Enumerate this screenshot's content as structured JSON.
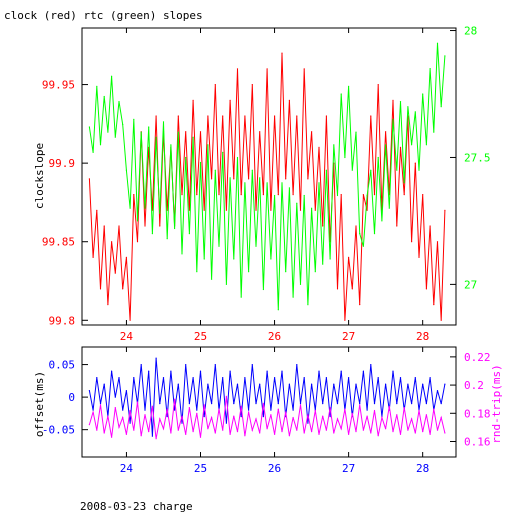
{
  "page_title": "clock (red) rtc (green) slopes",
  "footer_text": "2008-03-23 charge",
  "colors": {
    "red": "#ff0000",
    "green": "#00ff00",
    "blue": "#0000ff",
    "magenta": "#ff00ff",
    "axis": "#000000",
    "left_axis_text_top": "#ff0000",
    "right_axis_text_top": "#00ff00",
    "left_axis_text_bottom": "#0000ff",
    "right_axis_text_bottom": "#ff00ff"
  },
  "chart_data": [
    {
      "type": "line",
      "title": "clock (red) rtc (green) slopes",
      "xlabel": "",
      "ylabel": "clockslope",
      "y2label": "",
      "xlim": [
        23.4,
        28.45
      ],
      "x_ticks": [
        24,
        25,
        26,
        27,
        28
      ],
      "x_tick_labels": [
        "24",
        "25",
        "26",
        "27",
        "28"
      ],
      "ylim": [
        99.797,
        99.986
      ],
      "y_ticks": [
        99.8,
        99.85,
        99.9,
        99.95
      ],
      "y_tick_labels": [
        "99.8",
        "99.85",
        "99.9",
        "99.95"
      ],
      "y2lim": [
        26.84,
        28.01
      ],
      "y2_ticks": [
        27,
        27.5,
        28
      ],
      "y2_tick_labels": [
        "27",
        "27.5",
        "28"
      ],
      "series": [
        {
          "color": "#ff0000",
          "axis": "left",
          "x": [
            23.5,
            23.55,
            23.6,
            23.65,
            23.7,
            23.75,
            23.8,
            23.85,
            23.9,
            23.95,
            24.0,
            24.05,
            24.1,
            24.15,
            24.2,
            24.25,
            24.3,
            24.35,
            24.4,
            24.45,
            24.5,
            24.55,
            24.6,
            24.65,
            24.7,
            24.75,
            24.8,
            24.85,
            24.9,
            24.95,
            25.0,
            25.05,
            25.1,
            25.15,
            25.2,
            25.25,
            25.3,
            25.35,
            25.4,
            25.45,
            25.5,
            25.55,
            25.6,
            25.65,
            25.7,
            25.75,
            25.8,
            25.85,
            25.9,
            25.95,
            26.0,
            26.05,
            26.1,
            26.15,
            26.2,
            26.25,
            26.3,
            26.35,
            26.4,
            26.45,
            26.5,
            26.55,
            26.6,
            26.65,
            26.7,
            26.75,
            26.8,
            26.85,
            26.9,
            26.95,
            27.0,
            27.05,
            27.1,
            27.15,
            27.2,
            27.25,
            27.3,
            27.35,
            27.4,
            27.45,
            27.5,
            27.55,
            27.6,
            27.65,
            27.7,
            27.75,
            27.8,
            27.85,
            27.9,
            27.95,
            28.0,
            28.05,
            28.1,
            28.15,
            28.2,
            28.25,
            28.3
          ],
          "y": [
            99.89,
            99.84,
            99.87,
            99.82,
            99.86,
            99.81,
            99.85,
            99.83,
            99.86,
            99.82,
            99.84,
            99.8,
            99.88,
            99.85,
            99.92,
            99.86,
            99.91,
            99.87,
            99.93,
            99.86,
            99.92,
            99.87,
            99.91,
            99.86,
            99.93,
            99.88,
            99.92,
            99.87,
            99.94,
            99.88,
            99.92,
            99.87,
            99.93,
            99.89,
            99.95,
            99.88,
            99.93,
            99.87,
            99.94,
            99.89,
            99.96,
            99.88,
            99.93,
            99.89,
            99.95,
            99.87,
            99.92,
            99.88,
            99.96,
            99.87,
            99.93,
            99.88,
            99.97,
            99.89,
            99.94,
            99.88,
            99.93,
            99.87,
            99.96,
            99.89,
            99.92,
            99.87,
            99.91,
            99.86,
            99.93,
            99.85,
            99.9,
            99.82,
            99.88,
            99.8,
            99.84,
            99.82,
            99.86,
            99.81,
            99.88,
            99.87,
            99.93,
            99.88,
            99.95,
            99.87,
            99.92,
            99.88,
            99.94,
            99.86,
            99.91,
            99.88,
            99.93,
            99.85,
            99.9,
            99.84,
            99.88,
            99.82,
            99.86,
            99.81,
            99.85,
            99.8,
            99.87
          ]
        },
        {
          "color": "#00ff00",
          "axis": "right",
          "x": [
            23.5,
            23.55,
            23.6,
            23.65,
            23.7,
            23.75,
            23.8,
            23.85,
            23.9,
            23.95,
            24.0,
            24.05,
            24.1,
            24.15,
            24.2,
            24.25,
            24.3,
            24.35,
            24.4,
            24.45,
            24.5,
            24.55,
            24.6,
            24.65,
            24.7,
            24.75,
            24.8,
            24.85,
            24.9,
            24.95,
            25.0,
            25.05,
            25.1,
            25.15,
            25.2,
            25.25,
            25.3,
            25.35,
            25.4,
            25.45,
            25.5,
            25.55,
            25.6,
            25.65,
            25.7,
            25.75,
            25.8,
            25.85,
            25.9,
            25.95,
            26.0,
            26.05,
            26.1,
            26.15,
            26.2,
            26.25,
            26.3,
            26.35,
            26.4,
            26.45,
            26.5,
            26.55,
            26.6,
            26.65,
            26.7,
            26.75,
            26.8,
            26.85,
            26.9,
            26.95,
            27.0,
            27.05,
            27.1,
            27.15,
            27.2,
            27.25,
            27.3,
            27.35,
            27.4,
            27.45,
            27.5,
            27.55,
            27.6,
            27.65,
            27.7,
            27.75,
            27.8,
            27.85,
            27.9,
            27.95,
            28.0,
            28.05,
            28.1,
            28.15,
            28.2,
            28.25,
            28.3
          ],
          "y": [
            27.62,
            27.52,
            27.78,
            27.55,
            27.74,
            27.6,
            27.82,
            27.58,
            27.72,
            27.63,
            27.45,
            27.3,
            27.65,
            27.25,
            27.6,
            27.3,
            27.62,
            27.2,
            27.58,
            27.28,
            27.64,
            27.18,
            27.55,
            27.22,
            27.6,
            27.12,
            27.5,
            27.2,
            27.58,
            27.05,
            27.48,
            27.1,
            27.55,
            27.02,
            27.45,
            27.15,
            27.52,
            27.0,
            27.42,
            27.1,
            27.5,
            26.95,
            27.4,
            27.05,
            27.45,
            27.15,
            27.42,
            26.98,
            27.4,
            27.1,
            27.35,
            26.9,
            27.4,
            27.05,
            27.38,
            26.95,
            27.32,
            27.0,
            27.35,
            26.92,
            27.3,
            27.05,
            27.4,
            27.08,
            27.45,
            27.1,
            27.55,
            27.35,
            27.75,
            27.5,
            27.78,
            27.45,
            27.6,
            27.2,
            27.15,
            27.35,
            27.45,
            27.2,
            27.5,
            27.25,
            27.55,
            27.3,
            27.65,
            27.45,
            27.72,
            27.4,
            27.7,
            27.55,
            27.68,
            27.45,
            27.75,
            27.55,
            27.85,
            27.6,
            27.95,
            27.7,
            27.9
          ]
        }
      ]
    },
    {
      "type": "line",
      "title": "",
      "xlabel": "",
      "ylabel": "offset(ms)",
      "y2label": "rnd-trip(ms)",
      "xlim": [
        23.4,
        28.45
      ],
      "x_ticks": [
        24,
        25,
        26,
        27,
        28
      ],
      "x_tick_labels": [
        "24",
        "25",
        "26",
        "27",
        "28"
      ],
      "ylim": [
        -0.092,
        0.077
      ],
      "y_ticks": [
        -0.05,
        0,
        0.05
      ],
      "y_tick_labels": [
        "-0.05",
        "0",
        "0.05"
      ],
      "y2lim": [
        0.149,
        0.227
      ],
      "y2_ticks": [
        0.16,
        0.18,
        0.2,
        0.22
      ],
      "y2_tick_labels": [
        "0.16",
        "0.18",
        "0.2",
        "0.22"
      ],
      "series": [
        {
          "color": "#0000ff",
          "axis": "left",
          "x": [
            23.5,
            23.55,
            23.6,
            23.65,
            23.7,
            23.75,
            23.8,
            23.85,
            23.9,
            23.95,
            24.0,
            24.05,
            24.1,
            24.15,
            24.2,
            24.25,
            24.3,
            24.35,
            24.4,
            24.45,
            24.5,
            24.55,
            24.6,
            24.65,
            24.7,
            24.75,
            24.8,
            24.85,
            24.9,
            24.95,
            25.0,
            25.05,
            25.1,
            25.15,
            25.2,
            25.25,
            25.3,
            25.35,
            25.4,
            25.45,
            25.5,
            25.55,
            25.6,
            25.65,
            25.7,
            25.75,
            25.8,
            25.85,
            25.9,
            25.95,
            26.0,
            26.05,
            26.1,
            26.15,
            26.2,
            26.25,
            26.3,
            26.35,
            26.4,
            26.45,
            26.5,
            26.55,
            26.6,
            26.65,
            26.7,
            26.75,
            26.8,
            26.85,
            26.9,
            26.95,
            27.0,
            27.05,
            27.1,
            27.15,
            27.2,
            27.25,
            27.3,
            27.35,
            27.4,
            27.45,
            27.5,
            27.55,
            27.6,
            27.65,
            27.7,
            27.75,
            27.8,
            27.85,
            27.9,
            27.95,
            28.0,
            28.05,
            28.1,
            28.15,
            28.2,
            28.25,
            28.3
          ],
          "y": [
            0.01,
            -0.02,
            0.03,
            -0.01,
            0.02,
            -0.03,
            0.04,
            0.0,
            0.03,
            -0.02,
            0.01,
            -0.04,
            0.03,
            -0.01,
            0.05,
            -0.02,
            0.04,
            -0.06,
            0.06,
            -0.01,
            0.03,
            -0.03,
            0.04,
            -0.02,
            0.02,
            -0.04,
            0.05,
            -0.01,
            0.03,
            -0.02,
            0.04,
            -0.03,
            0.02,
            -0.01,
            0.05,
            -0.02,
            0.03,
            -0.04,
            0.04,
            -0.01,
            0.02,
            -0.03,
            0.03,
            -0.02,
            0.05,
            -0.01,
            0.02,
            -0.03,
            0.04,
            -0.02,
            0.03,
            -0.01,
            0.04,
            -0.03,
            0.02,
            -0.02,
            0.05,
            -0.01,
            0.03,
            -0.04,
            0.02,
            -0.02,
            0.04,
            -0.01,
            0.03,
            -0.03,
            0.02,
            -0.01,
            0.04,
            -0.02,
            0.03,
            -0.03,
            0.02,
            -0.01,
            0.04,
            -0.02,
            0.05,
            -0.01,
            0.03,
            -0.03,
            0.02,
            -0.02,
            0.04,
            -0.01,
            0.03,
            -0.02,
            0.02,
            -0.01,
            0.03,
            -0.02,
            0.02,
            -0.01,
            0.03,
            -0.02,
            0.01,
            -0.01,
            0.02
          ]
        },
        {
          "color": "#ff00ff",
          "axis": "right",
          "x": [
            23.5,
            23.55,
            23.6,
            23.65,
            23.7,
            23.75,
            23.8,
            23.85,
            23.9,
            23.95,
            24.0,
            24.05,
            24.1,
            24.15,
            24.2,
            24.25,
            24.3,
            24.35,
            24.4,
            24.45,
            24.5,
            24.55,
            24.6,
            24.65,
            24.7,
            24.75,
            24.8,
            24.85,
            24.9,
            24.95,
            25.0,
            25.05,
            25.1,
            25.15,
            25.2,
            25.25,
            25.3,
            25.35,
            25.4,
            25.45,
            25.5,
            25.55,
            25.6,
            25.65,
            25.7,
            25.75,
            25.8,
            25.85,
            25.9,
            25.95,
            26.0,
            26.05,
            26.1,
            26.15,
            26.2,
            26.25,
            26.3,
            26.35,
            26.4,
            26.45,
            26.5,
            26.55,
            26.6,
            26.65,
            26.7,
            26.75,
            26.8,
            26.85,
            26.9,
            26.95,
            27.0,
            27.05,
            27.1,
            27.15,
            27.2,
            27.25,
            27.3,
            27.35,
            27.4,
            27.45,
            27.5,
            27.55,
            27.6,
            27.65,
            27.7,
            27.75,
            27.8,
            27.85,
            27.9,
            27.95,
            28.0,
            28.05,
            28.1,
            28.15,
            28.2,
            28.25,
            28.3
          ],
          "y": [
            0.172,
            0.181,
            0.168,
            0.186,
            0.166,
            0.178,
            0.163,
            0.184,
            0.17,
            0.177,
            0.165,
            0.182,
            0.168,
            0.188,
            0.164,
            0.179,
            0.167,
            0.185,
            0.162,
            0.176,
            0.169,
            0.183,
            0.166,
            0.19,
            0.168,
            0.178,
            0.165,
            0.184,
            0.167,
            0.18,
            0.163,
            0.186,
            0.169,
            0.177,
            0.166,
            0.183,
            0.168,
            0.192,
            0.165,
            0.178,
            0.167,
            0.185,
            0.164,
            0.181,
            0.168,
            0.176,
            0.166,
            0.187,
            0.169,
            0.179,
            0.165,
            0.183,
            0.167,
            0.181,
            0.164,
            0.177,
            0.168,
            0.186,
            0.166,
            0.179,
            0.167,
            0.182,
            0.165,
            0.178,
            0.168,
            0.184,
            0.166,
            0.176,
            0.169,
            0.183,
            0.165,
            0.18,
            0.167,
            0.186,
            0.168,
            0.178,
            0.166,
            0.182,
            0.164,
            0.177,
            0.169,
            0.185,
            0.167,
            0.179,
            0.165,
            0.184,
            0.168,
            0.176,
            0.166,
            0.182,
            0.167,
            0.179,
            0.165,
            0.183,
            0.168,
            0.177,
            0.166
          ]
        }
      ]
    }
  ]
}
